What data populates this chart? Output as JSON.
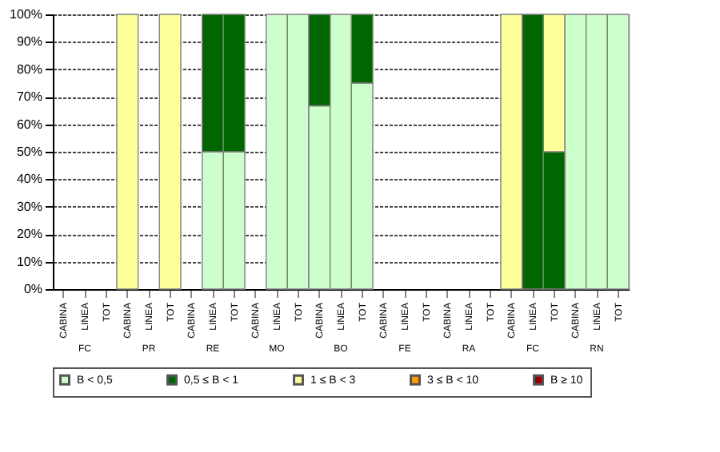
{
  "chart_data": {
    "type": "bar",
    "stacked": true,
    "categories": [
      "CABINA",
      "LINEA",
      "TOT",
      "CABINA",
      "LINEA",
      "TOT",
      "CABINA",
      "LINEA",
      "TOT",
      "CABINA",
      "LINEA",
      "TOT",
      "CABINA",
      "LINEA",
      "TOT",
      "CABINA",
      "LINEA",
      "TOT",
      "CABINA",
      "LINEA",
      "TOT",
      "CABINA",
      "LINEA",
      "TOT",
      "CABINA",
      "LINEA",
      "TOT"
    ],
    "annotations": [
      "FC",
      "PR",
      "RE",
      "MO",
      "BO",
      "FE",
      "RA",
      "FC",
      "RN"
    ],
    "series": [
      {
        "name": "B < 0,5",
        "color": "#ccffcc",
        "values": [
          null,
          null,
          null,
          null,
          null,
          null,
          null,
          50,
          50,
          null,
          100,
          100,
          66.7,
          100,
          75,
          null,
          null,
          null,
          null,
          null,
          null,
          null,
          null,
          null,
          100,
          100,
          100
        ]
      },
      {
        "name": "0,5 ≤ B < 1",
        "color": "#006600",
        "values": [
          null,
          null,
          null,
          null,
          null,
          null,
          null,
          50,
          50,
          null,
          null,
          null,
          33.3,
          null,
          25,
          null,
          null,
          null,
          null,
          null,
          null,
          null,
          100,
          50,
          null,
          null,
          null
        ]
      },
      {
        "name": "1 ≤ B < 3",
        "color": "#ffff99",
        "values": [
          null,
          null,
          null,
          100,
          null,
          100,
          null,
          null,
          null,
          null,
          null,
          null,
          null,
          null,
          null,
          null,
          null,
          null,
          null,
          null,
          null,
          100,
          null,
          50,
          null,
          null,
          null
        ]
      },
      {
        "name": "3 ≤ B < 10",
        "color": "#ff9900",
        "values": [
          null,
          null,
          null,
          null,
          null,
          null,
          null,
          null,
          null,
          null,
          null,
          null,
          null,
          null,
          null,
          null,
          null,
          null,
          null,
          null,
          null,
          null,
          null,
          null,
          null,
          null,
          null
        ]
      },
      {
        "name": "B ≥ 10",
        "color": "#990000",
        "values": [
          null,
          null,
          null,
          null,
          null,
          null,
          null,
          null,
          null,
          null,
          null,
          null,
          null,
          null,
          null,
          null,
          null,
          null,
          null,
          null,
          null,
          null,
          null,
          null,
          null,
          null,
          null
        ]
      }
    ],
    "ylim": [
      0,
      100
    ],
    "yticks": [
      {
        "value": 0,
        "label": "0%"
      },
      {
        "value": 10,
        "label": "10%"
      },
      {
        "value": 20,
        "label": "20%"
      },
      {
        "value": 30,
        "label": "30%"
      },
      {
        "value": 40,
        "label": "40%"
      },
      {
        "value": 50,
        "label": "50%"
      },
      {
        "value": 60,
        "label": "60%"
      },
      {
        "value": 70,
        "label": "70%"
      },
      {
        "value": 80,
        "label": "80%"
      },
      {
        "value": 90,
        "label": "90%"
      },
      {
        "value": 100,
        "label": "100%"
      }
    ],
    "grid": "y",
    "legend": "bottom"
  }
}
